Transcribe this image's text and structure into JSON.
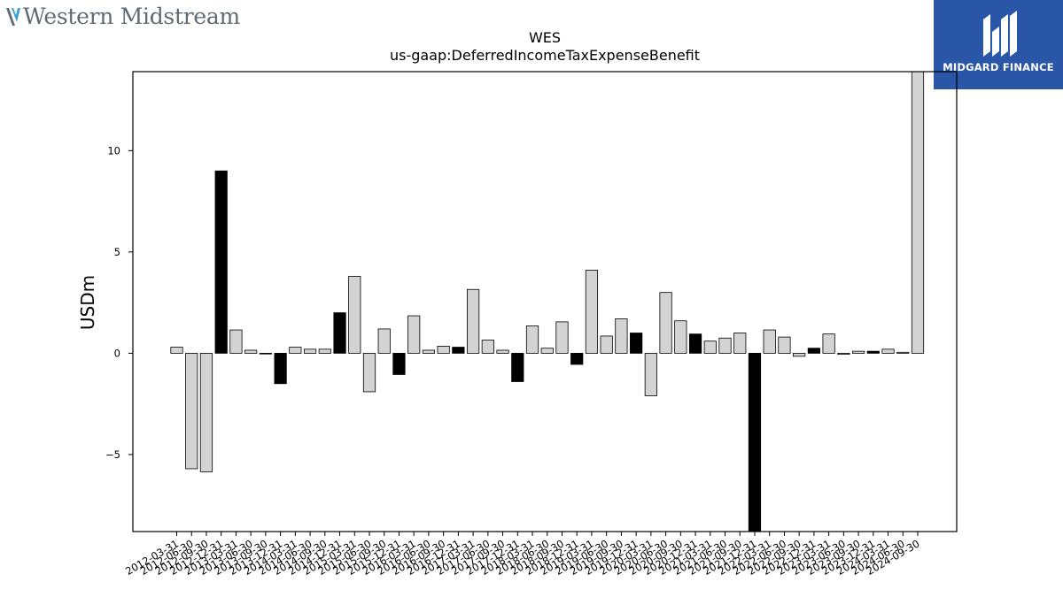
{
  "header": {
    "company_logo_text": "Western Midstream",
    "brand_logo_text": "MIDGARD FINANCE",
    "brand_color": "#2a56a8"
  },
  "chart_data": {
    "type": "bar",
    "title": "WES",
    "subtitle": "us-gaap:DeferredIncomeTaxExpenseBenefit",
    "xlabel": "",
    "ylabel": "USDm",
    "ylim": [
      -8.8,
      13.9
    ],
    "yticks": [
      -5,
      0,
      5,
      10
    ],
    "grid": false,
    "legend": "none",
    "colors": {
      "light": "#d3d3d3",
      "dark": "#000000",
      "edge": "#000000"
    },
    "categories": [
      "2012-03-31",
      "2012-06-30",
      "2012-09-30",
      "2012-12-31",
      "2013-03-31",
      "2013-06-30",
      "2013-09-30",
      "2013-12-31",
      "2014-03-31",
      "2014-06-30",
      "2014-09-30",
      "2014-12-31",
      "2015-03-31",
      "2015-06-30",
      "2015-09-30",
      "2015-12-31",
      "2016-03-31",
      "2016-06-30",
      "2016-09-30",
      "2016-12-31",
      "2017-03-31",
      "2017-06-30",
      "2017-09-30",
      "2017-12-31",
      "2018-03-31",
      "2018-06-30",
      "2018-09-30",
      "2018-12-31",
      "2019-03-31",
      "2019-06-30",
      "2019-09-30",
      "2019-12-31",
      "2020-03-31",
      "2020-06-30",
      "2020-09-30",
      "2020-12-31",
      "2021-03-31",
      "2021-06-30",
      "2021-09-30",
      "2021-12-31",
      "2022-03-31",
      "2022-06-30",
      "2022-09-30",
      "2022-12-31",
      "2023-03-31",
      "2023-06-30",
      "2023-09-30",
      "2023-12-31",
      "2024-03-31",
      "2024-06-30",
      "2024-09-30"
    ],
    "values": [
      0.3,
      -5.7,
      -5.85,
      9.0,
      1.15,
      0.15,
      -0.02,
      -1.5,
      0.3,
      0.2,
      0.2,
      2.0,
      3.8,
      -1.9,
      1.2,
      -1.05,
      1.85,
      0.15,
      0.35,
      0.3,
      3.15,
      0.65,
      0.15,
      -1.4,
      1.35,
      0.25,
      1.55,
      -0.55,
      4.1,
      0.85,
      1.7,
      1.0,
      -2.1,
      3.0,
      1.6,
      0.95,
      0.6,
      0.75,
      1.0,
      -8.8,
      1.15,
      0.8,
      -0.15,
      0.25,
      0.95,
      -0.05,
      0.1,
      0.1,
      0.2,
      0.05,
      13.9
    ],
    "dark_bars": [
      3,
      7,
      11,
      15,
      19,
      23,
      27,
      31,
      35,
      39,
      43,
      47
    ]
  }
}
